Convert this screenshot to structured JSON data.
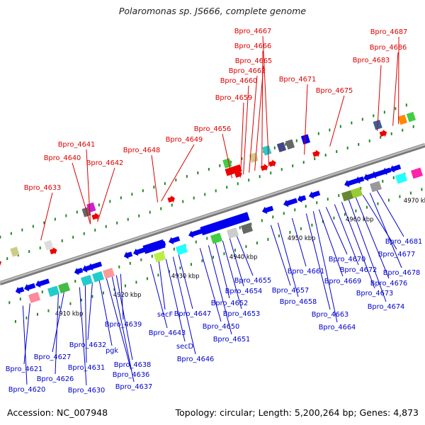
{
  "title": "Polaromonas sp. JS666, complete genome",
  "footer": {
    "accession": "Accession: NC_007948",
    "topology": "Topology: circular; Length: 5,200,264 bp; Genes: 4,873"
  },
  "colors": {
    "label_forward": "#dd0000",
    "label_reverse": "#0000cc",
    "gene_forward": "#ee0000",
    "gene_reverse": "#0000ee",
    "backbone": "#999999",
    "tick": "#228822"
  },
  "kbp_marks": [
    "4910 kbp",
    "4920 kbp",
    "4930 kbp",
    "4940 kbp",
    "4950 kbp",
    "4960 kbp",
    "4970 kbp"
  ],
  "top_labels": [
    "Bpro_4633",
    "Bpro_4640",
    "Bpro_4641",
    "Bpro_4642",
    "Bpro_4648",
    "Bpro_4649",
    "Bpro_4656",
    "Bpro_4659",
    "Bpro_4660",
    "Bpro_4662",
    "Bpro_4665",
    "Bpro_4666",
    "Bpro_4667",
    "Bpro_4671",
    "Bpro_4675",
    "Bpro_4683",
    "Bpro_4686",
    "Bpro_4687"
  ],
  "bottom_labels": [
    "Bpro_4620",
    "Bpro_4621",
    "Bpro_4626",
    "Bpro_4627",
    "Bpro_4630",
    "Bpro_4631",
    "Bpro_4632",
    "pgk",
    "Bpro_4636",
    "Bpro_4637",
    "Bpro_4638",
    "Bpro_4639",
    "Bpro_4643",
    "secF",
    "secD",
    "Bpro_4646",
    "Bpro_4647",
    "Bpro_4650",
    "Bpro_4651",
    "Bpro_4652",
    "Bpro_4653",
    "Bpro_4654",
    "Bpro_4655",
    "Bpro_4657",
    "Bpro_4658",
    "Bpro_4661",
    "Bpro_4663",
    "Bpro_4664",
    "Bpro_4669",
    "Bpro_4670",
    "Bpro_4672",
    "Bpro_4673",
    "Bpro_4674",
    "Bpro_4676",
    "Bpro_4677",
    "Bpro_4678",
    "Bpro_4681"
  ]
}
